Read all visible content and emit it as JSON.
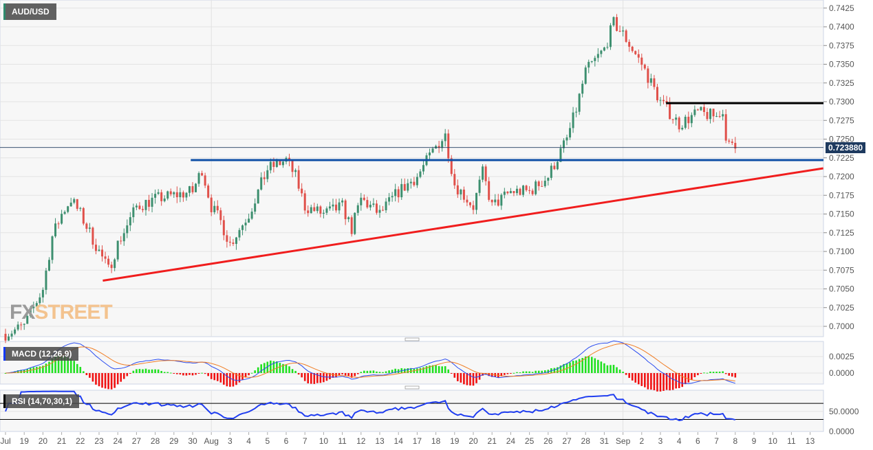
{
  "symbol": "AUD/USD",
  "current_price": "0.723880",
  "watermark": {
    "a": "FX",
    "b": "STREET"
  },
  "macd": {
    "label": "MACD (12,26,9)",
    "ticks": [
      "0.0025",
      "0.0000"
    ]
  },
  "rsi": {
    "label": "RSI (14,70,30,1)",
    "ticks": [
      "50.0000",
      "0.0000"
    ],
    "upper": 70,
    "lower": 30
  },
  "colors": {
    "up": "#3d8f6f",
    "down": "#e0504a",
    "support": "#0d4fa6",
    "resistance": "#000000",
    "trend": "#f01d1d",
    "macd": "#2a4cf0",
    "signal": "#f07c22",
    "hist_up": "#1fe01f",
    "hist_down": "#f01010",
    "rsi": "#1f3df0"
  },
  "chart_data": {
    "type": "candlestick",
    "title": "AUD/USD",
    "price_ticks": [
      "0.7425",
      "0.7400",
      "0.7375",
      "0.7350",
      "0.7325",
      "0.7300",
      "0.7275",
      "0.7250",
      "0.7225",
      "0.7200",
      "0.7175",
      "0.7150",
      "0.7125",
      "0.7100",
      "0.7075",
      "0.7050",
      "0.7025",
      "0.7000"
    ],
    "ylim": [
      0.6985,
      0.7435
    ],
    "x_labels": [
      "Jul",
      "19",
      "20",
      "21",
      "22",
      "23",
      "24",
      "27",
      "28",
      "29",
      "30",
      "Aug",
      "3",
      "4",
      "5",
      "6",
      "7",
      "10",
      "11",
      "12",
      "13",
      "14",
      "17",
      "18",
      "19",
      "20",
      "21",
      "24",
      "25",
      "26",
      "27",
      "28",
      "31",
      "Sep",
      "2",
      "3",
      "4",
      "6",
      "7",
      "8",
      "9",
      "10",
      "11",
      "13"
    ],
    "price_path": [
      [
        0,
        0.699
      ],
      [
        1,
        0.7
      ],
      [
        2,
        0.705
      ],
      [
        2.5,
        0.712
      ],
      [
        3,
        0.715
      ],
      [
        3.5,
        0.717
      ],
      [
        4,
        0.715
      ],
      [
        5,
        0.71
      ],
      [
        5.5,
        0.7075
      ],
      [
        6,
        0.711
      ],
      [
        7,
        0.716
      ],
      [
        8,
        0.717
      ],
      [
        9,
        0.7175
      ],
      [
        10,
        0.718
      ],
      [
        10.5,
        0.721
      ],
      [
        11,
        0.716
      ],
      [
        11.5,
        0.714
      ],
      [
        12,
        0.711
      ],
      [
        13,
        0.715
      ],
      [
        14,
        0.721
      ],
      [
        15,
        0.7222
      ],
      [
        15.5,
        0.72
      ],
      [
        16,
        0.716
      ],
      [
        17,
        0.715
      ],
      [
        18,
        0.716
      ],
      [
        18.5,
        0.713
      ],
      [
        19,
        0.717
      ],
      [
        20,
        0.715
      ],
      [
        21,
        0.718
      ],
      [
        22,
        0.72
      ],
      [
        23,
        0.724
      ],
      [
        23.5,
        0.7255
      ],
      [
        24,
        0.719
      ],
      [
        25,
        0.716
      ],
      [
        25.5,
        0.7205
      ],
      [
        26,
        0.716
      ],
      [
        27,
        0.718
      ],
      [
        28,
        0.718
      ],
      [
        29,
        0.72
      ],
      [
        30,
        0.725
      ],
      [
        30.5,
        0.729
      ],
      [
        31,
        0.734
      ],
      [
        32,
        0.737
      ],
      [
        32.5,
        0.7405
      ],
      [
        33,
        0.739
      ],
      [
        34,
        0.735
      ],
      [
        35,
        0.73
      ],
      [
        36,
        0.727
      ],
      [
        37,
        0.7285
      ],
      [
        38,
        0.728
      ],
      [
        38.3,
        0.729
      ],
      [
        38.6,
        0.724
      ],
      [
        39,
        0.7238
      ]
    ],
    "lines": {
      "resistance": {
        "price": 0.7298,
        "from_day": 35.3
      },
      "support": {
        "price": 0.7222,
        "from_day": 9.9
      },
      "trendline": {
        "from": [
          5.2,
          0.7061
        ],
        "to": [
          43.7,
          0.7211
        ]
      }
    }
  }
}
